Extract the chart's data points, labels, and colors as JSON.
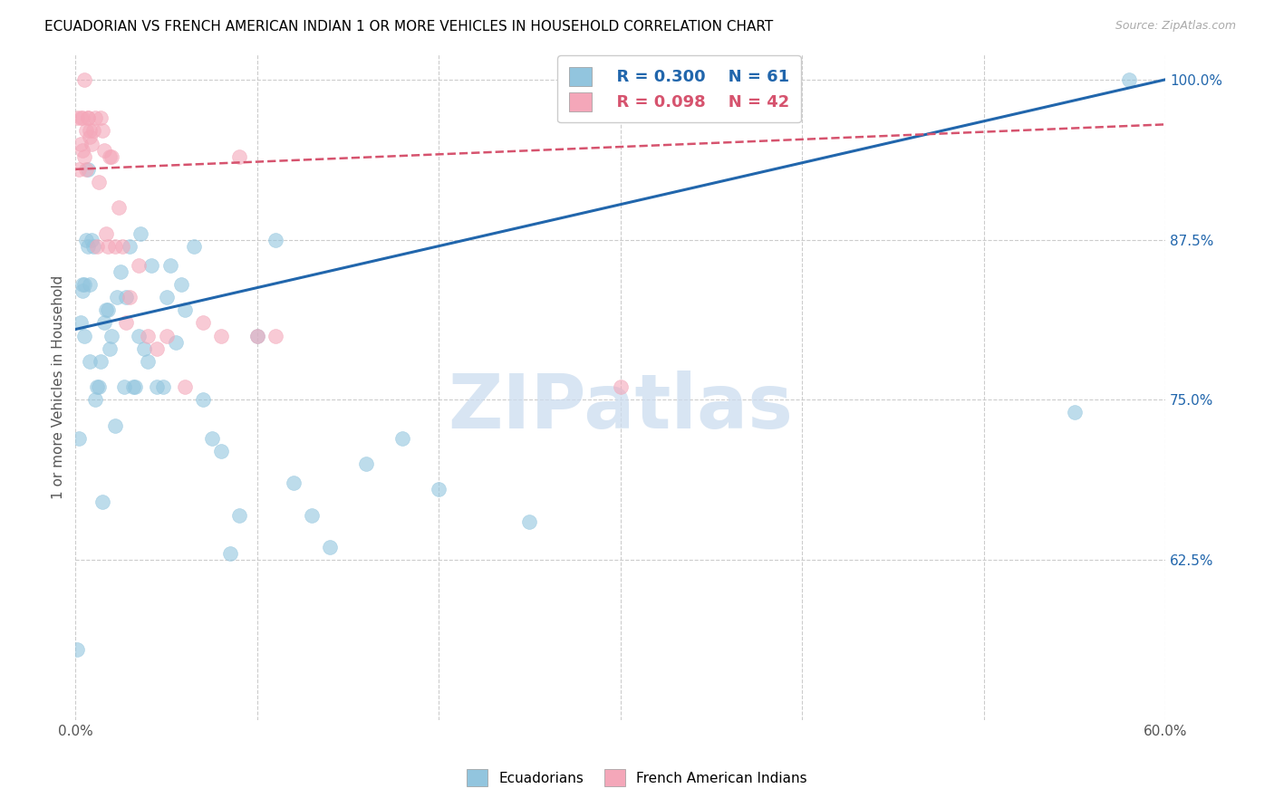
{
  "title": "ECUADORIAN VS FRENCH AMERICAN INDIAN 1 OR MORE VEHICLES IN HOUSEHOLD CORRELATION CHART",
  "source": "Source: ZipAtlas.com",
  "ylabel": "1 or more Vehicles in Household",
  "xmin": 0.0,
  "xmax": 0.6,
  "ymin": 0.5,
  "ymax": 1.02,
  "xticks": [
    0.0,
    0.1,
    0.2,
    0.3,
    0.4,
    0.5,
    0.6
  ],
  "xtick_labels": [
    "0.0%",
    "",
    "",
    "",
    "",
    "",
    "60.0%"
  ],
  "yticks": [
    0.625,
    0.75,
    0.875,
    1.0
  ],
  "ytick_labels": [
    "62.5%",
    "75.0%",
    "87.5%",
    "100.0%"
  ],
  "legend_r1": "R = 0.300",
  "legend_n1": "N = 61",
  "legend_r2": "R = 0.098",
  "legend_n2": "N = 42",
  "legend_label1": "Ecuadorians",
  "legend_label2": "French American Indians",
  "blue_color": "#92c5de",
  "pink_color": "#f4a7b9",
  "blue_line_color": "#2166ac",
  "pink_line_color": "#d6536e",
  "watermark_text": "ZIPatlas",
  "blue_line_x0": 0.0,
  "blue_line_x1": 0.6,
  "blue_line_y0": 0.805,
  "blue_line_y1": 1.0,
  "pink_line_x0": 0.0,
  "pink_line_x1": 0.6,
  "pink_line_y0": 0.93,
  "pink_line_y1": 0.965,
  "blue_scatter_x": [
    0.001,
    0.002,
    0.003,
    0.004,
    0.004,
    0.005,
    0.005,
    0.006,
    0.007,
    0.007,
    0.008,
    0.008,
    0.009,
    0.01,
    0.011,
    0.012,
    0.013,
    0.014,
    0.015,
    0.016,
    0.017,
    0.018,
    0.019,
    0.02,
    0.022,
    0.023,
    0.025,
    0.027,
    0.028,
    0.03,
    0.032,
    0.033,
    0.035,
    0.036,
    0.038,
    0.04,
    0.042,
    0.045,
    0.048,
    0.05,
    0.052,
    0.055,
    0.058,
    0.06,
    0.065,
    0.07,
    0.075,
    0.08,
    0.085,
    0.09,
    0.1,
    0.11,
    0.12,
    0.13,
    0.14,
    0.16,
    0.18,
    0.2,
    0.25,
    0.55,
    0.58
  ],
  "blue_scatter_y": [
    0.555,
    0.72,
    0.81,
    0.835,
    0.84,
    0.8,
    0.84,
    0.875,
    0.87,
    0.93,
    0.78,
    0.84,
    0.875,
    0.87,
    0.75,
    0.76,
    0.76,
    0.78,
    0.67,
    0.81,
    0.82,
    0.82,
    0.79,
    0.8,
    0.73,
    0.83,
    0.85,
    0.76,
    0.83,
    0.87,
    0.76,
    0.76,
    0.8,
    0.88,
    0.79,
    0.78,
    0.855,
    0.76,
    0.76,
    0.83,
    0.855,
    0.795,
    0.84,
    0.82,
    0.87,
    0.75,
    0.72,
    0.71,
    0.63,
    0.66,
    0.8,
    0.875,
    0.685,
    0.66,
    0.635,
    0.7,
    0.72,
    0.68,
    0.655,
    0.74,
    1.0
  ],
  "pink_scatter_x": [
    0.001,
    0.002,
    0.003,
    0.003,
    0.004,
    0.004,
    0.005,
    0.005,
    0.006,
    0.006,
    0.007,
    0.007,
    0.008,
    0.008,
    0.009,
    0.01,
    0.011,
    0.012,
    0.013,
    0.014,
    0.015,
    0.016,
    0.017,
    0.018,
    0.019,
    0.02,
    0.022,
    0.024,
    0.026,
    0.028,
    0.03,
    0.035,
    0.04,
    0.045,
    0.05,
    0.06,
    0.07,
    0.08,
    0.09,
    0.1,
    0.11,
    0.3
  ],
  "pink_scatter_y": [
    0.97,
    0.93,
    0.95,
    0.97,
    0.97,
    0.945,
    0.94,
    1.0,
    0.93,
    0.96,
    0.97,
    0.97,
    0.96,
    0.955,
    0.95,
    0.96,
    0.97,
    0.87,
    0.92,
    0.97,
    0.96,
    0.945,
    0.88,
    0.87,
    0.94,
    0.94,
    0.87,
    0.9,
    0.87,
    0.81,
    0.83,
    0.855,
    0.8,
    0.79,
    0.8,
    0.76,
    0.81,
    0.8,
    0.94,
    0.8,
    0.8,
    0.76
  ]
}
